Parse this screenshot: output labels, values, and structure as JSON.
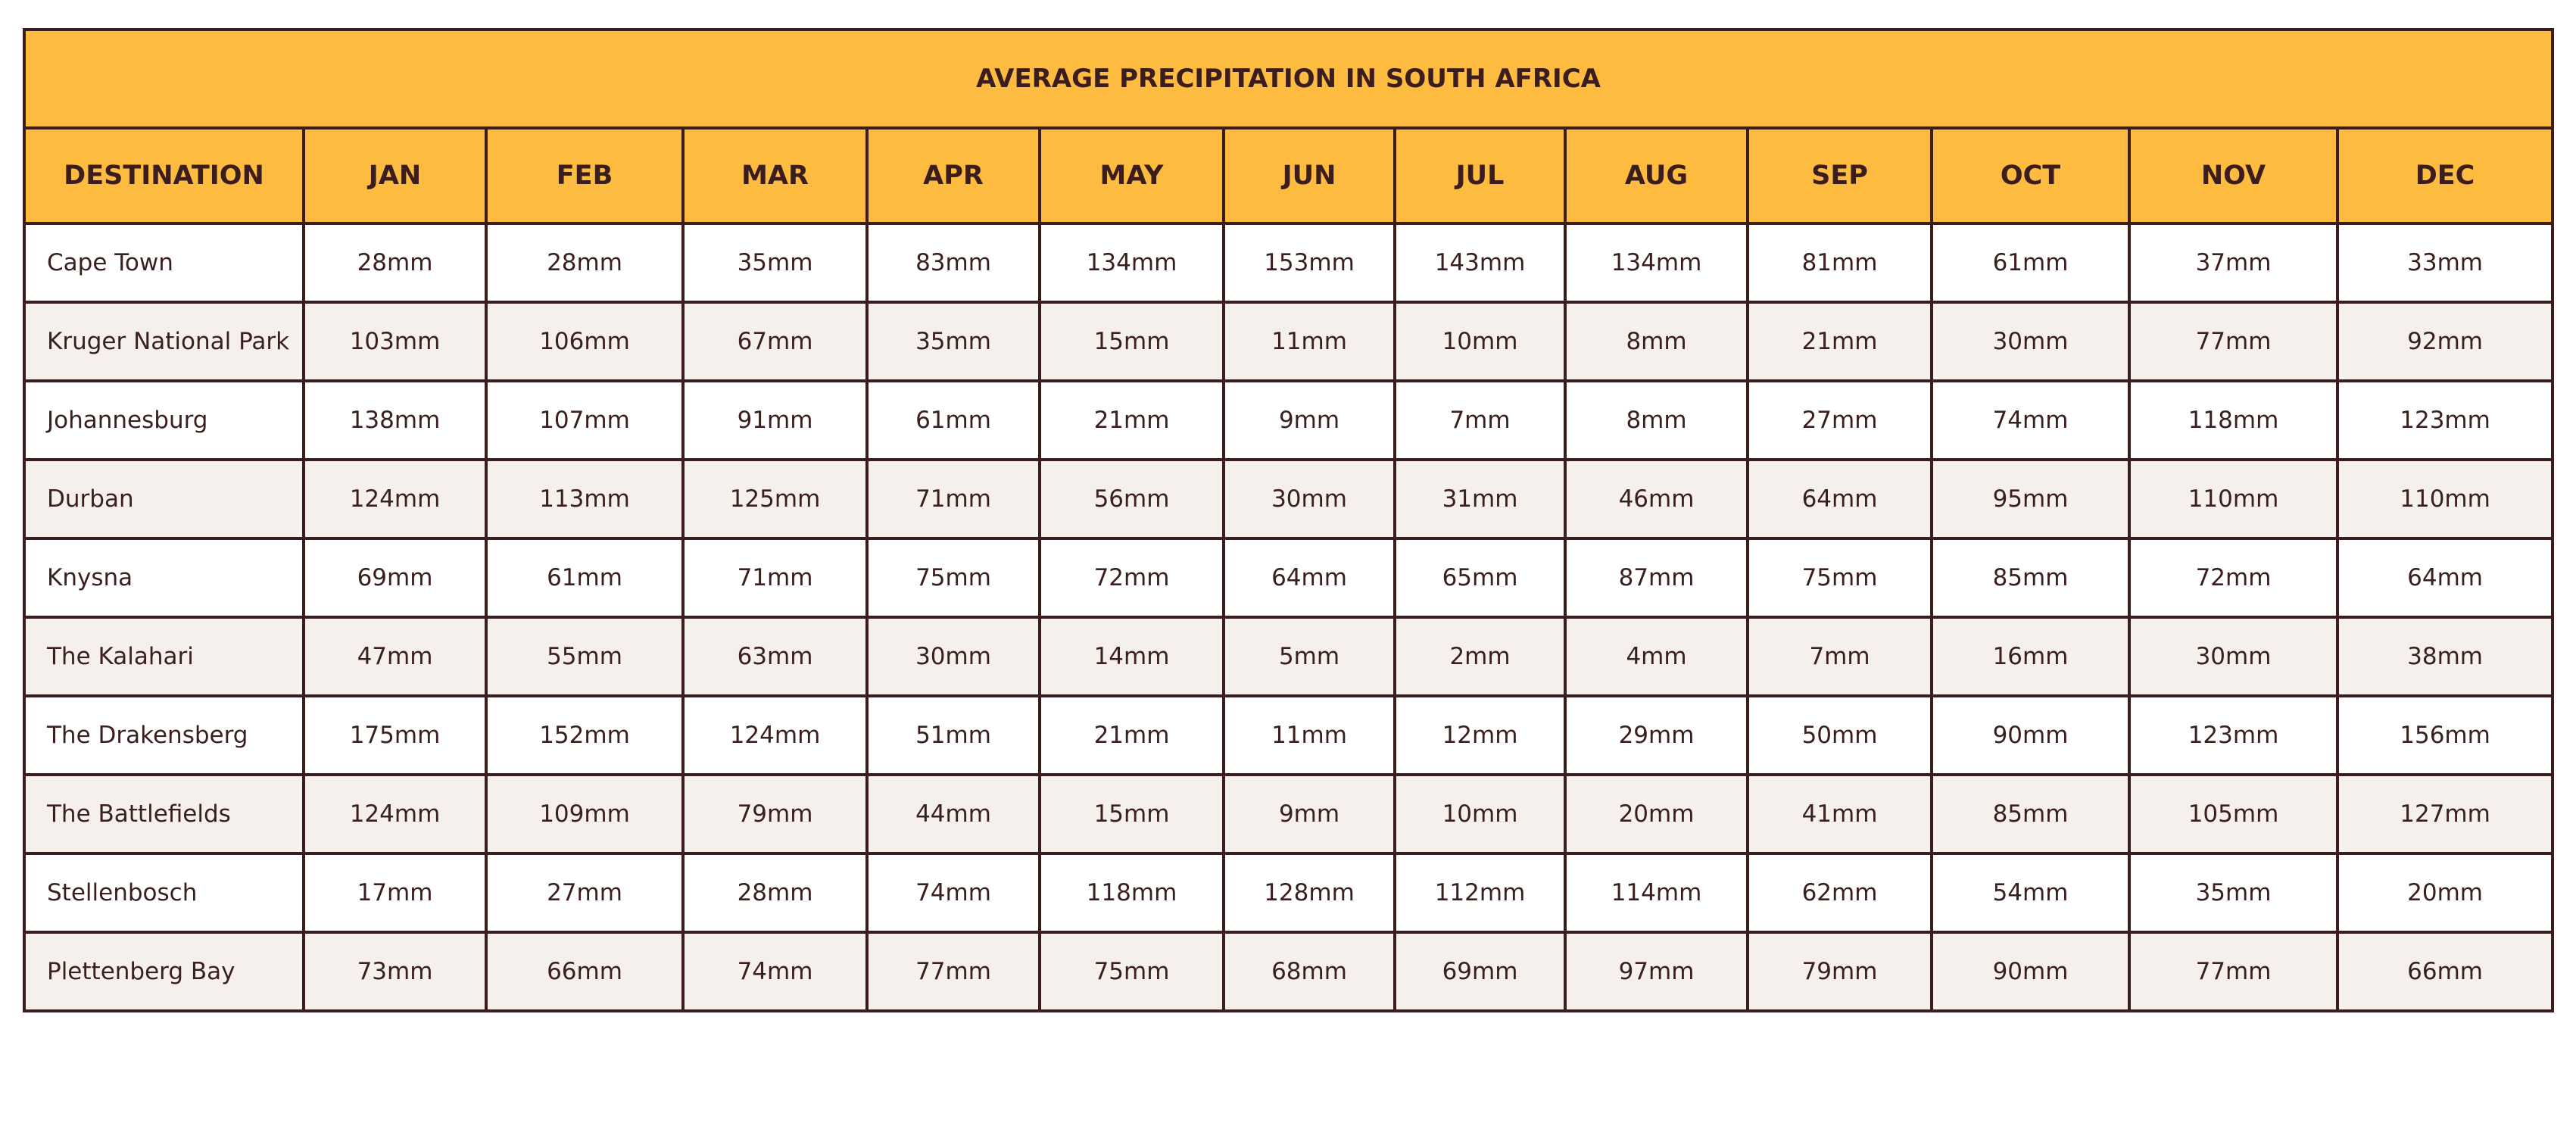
{
  "table": {
    "title": "AVERAGE PRECIPITATION IN SOUTH AFRICA",
    "columns": [
      "DESTINATION",
      "JAN",
      "FEB",
      "MAR",
      "APR",
      "MAY",
      "JUN",
      "JUL",
      "AUG",
      "SEP",
      "OCT",
      "NOV",
      "DEC"
    ],
    "rows": [
      [
        "Cape Town",
        "28mm",
        "28mm",
        "35mm",
        "83mm",
        "134mm",
        "153mm",
        "143mm",
        "134mm",
        "81mm",
        "61mm",
        "37mm",
        "33mm"
      ],
      [
        "Kruger National Park",
        "103mm",
        "106mm",
        "67mm",
        "35mm",
        "15mm",
        "11mm",
        "10mm",
        "8mm",
        "21mm",
        "30mm",
        "77mm",
        "92mm"
      ],
      [
        "Johannesburg",
        "138mm",
        "107mm",
        "91mm",
        "61mm",
        "21mm",
        "9mm",
        "7mm",
        "8mm",
        "27mm",
        "74mm",
        "118mm",
        "123mm"
      ],
      [
        "Durban",
        "124mm",
        "113mm",
        "125mm",
        "71mm",
        "56mm",
        "30mm",
        "31mm",
        "46mm",
        "64mm",
        "95mm",
        "110mm",
        "110mm"
      ],
      [
        "Knysna",
        "69mm",
        "61mm",
        "71mm",
        "75mm",
        "72mm",
        "64mm",
        "65mm",
        "87mm",
        "75mm",
        "85mm",
        "72mm",
        "64mm"
      ],
      [
        "The Kalahari",
        "47mm",
        "55mm",
        "63mm",
        "30mm",
        "14mm",
        "5mm",
        "2mm",
        "4mm",
        "7mm",
        "16mm",
        "30mm",
        "38mm"
      ],
      [
        "The Drakensberg",
        "175mm",
        "152mm",
        "124mm",
        "51mm",
        "21mm",
        "11mm",
        "12mm",
        "29mm",
        "50mm",
        "90mm",
        "123mm",
        "156mm"
      ],
      [
        "The Battlefields",
        "124mm",
        "109mm",
        "79mm",
        "44mm",
        "15mm",
        "9mm",
        "10mm",
        "20mm",
        "41mm",
        "85mm",
        "105mm",
        "127mm"
      ],
      [
        "Stellenbosch",
        "17mm",
        "27mm",
        "28mm",
        "74mm",
        "118mm",
        "128mm",
        "112mm",
        "114mm",
        "62mm",
        "54mm",
        "35mm",
        "20mm"
      ],
      [
        "Plettenberg Bay",
        "73mm",
        "66mm",
        "74mm",
        "77mm",
        "75mm",
        "68mm",
        "69mm",
        "97mm",
        "79mm",
        "90mm",
        "77mm",
        "66mm"
      ]
    ]
  }
}
